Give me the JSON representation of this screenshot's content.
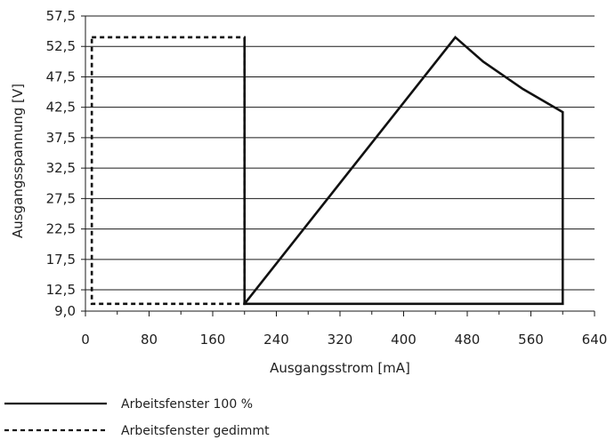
{
  "chart_data": {
    "type": "line",
    "xlabel": "Ausgangsstrom [mA]",
    "ylabel": "Ausgangsspannung [V]",
    "xlim": [
      0,
      640
    ],
    "ylim": [
      9.0,
      57.5
    ],
    "x_ticks": [
      {
        "value": 0,
        "label": "0"
      },
      {
        "value": 80,
        "label": "80"
      },
      {
        "value": 160,
        "label": "160"
      },
      {
        "value": 240,
        "label": "240"
      },
      {
        "value": 320,
        "label": "320"
      },
      {
        "value": 400,
        "label": "400"
      },
      {
        "value": 480,
        "label": "480"
      },
      {
        "value": 560,
        "label": "560"
      },
      {
        "value": 640,
        "label": "640"
      }
    ],
    "y_ticks": [
      {
        "value": 9.0,
        "label": "9,0"
      },
      {
        "value": 12.5,
        "label": "12,5"
      },
      {
        "value": 17.5,
        "label": "17,5"
      },
      {
        "value": 22.5,
        "label": "22,5"
      },
      {
        "value": 27.5,
        "label": "27,5"
      },
      {
        "value": 32.5,
        "label": "32,5"
      },
      {
        "value": 37.5,
        "label": "37,5"
      },
      {
        "value": 42.5,
        "label": "42,5"
      },
      {
        "value": 47.5,
        "label": "47,5"
      },
      {
        "value": 52.5,
        "label": "52,5"
      },
      {
        "value": 57.5,
        "label": "57,5"
      }
    ],
    "grid": true,
    "legend_position": "bottom-left",
    "series": [
      {
        "name": "Arbeitsfenster 100 %",
        "style": "solid",
        "color": "#111111",
        "x": [
          200,
          465,
          500,
          550,
          600,
          600,
          200,
          200
        ],
        "y": [
          10.2,
          54.0,
          50.0,
          45.5,
          41.7,
          10.2,
          10.2,
          54.0
        ]
      },
      {
        "name": "Arbeitsfenster gedimmt",
        "style": "dashed",
        "color": "#111111",
        "x": [
          8,
          200,
          200,
          8,
          8
        ],
        "y": [
          54.0,
          54.0,
          10.2,
          10.2,
          54.0
        ]
      }
    ]
  }
}
